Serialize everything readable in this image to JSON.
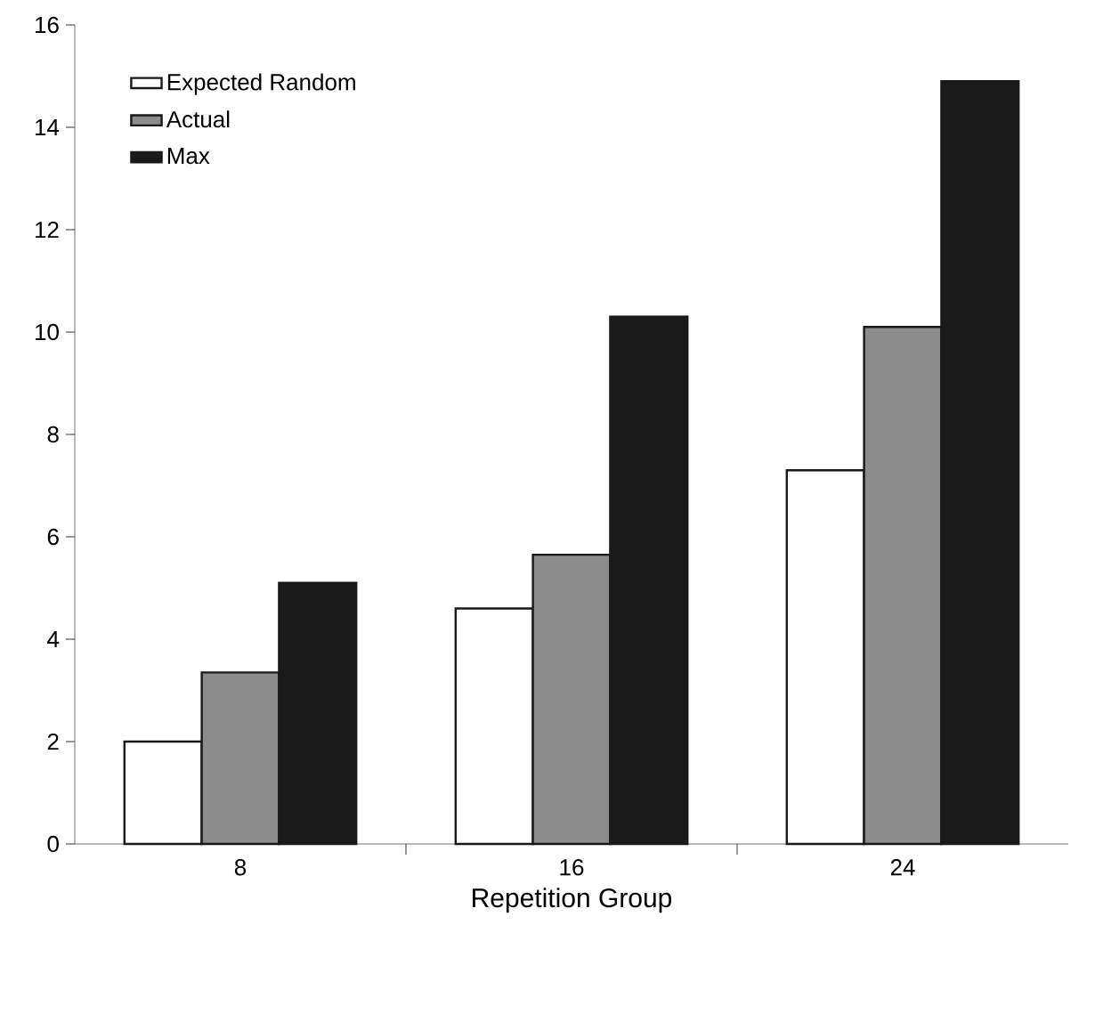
{
  "chart_data": {
    "type": "bar",
    "xlabel": "Repetition Group",
    "categories": [
      "8",
      "16",
      "24"
    ],
    "series": [
      {
        "name": "Expected Random",
        "color": "#ffffff",
        "values": [
          2.0,
          4.6,
          7.3
        ]
      },
      {
        "name": "Actual",
        "color": "#8c8c8c",
        "values": [
          3.35,
          5.65,
          10.1
        ]
      },
      {
        "name": "Max",
        "color": "#1a1a1a",
        "values": [
          5.1,
          10.3,
          14.9
        ]
      }
    ],
    "ylim": [
      0,
      16
    ],
    "yticks": [
      0,
      2,
      4,
      6,
      8,
      10,
      12,
      14,
      16
    ],
    "grid": false,
    "legend": "top left"
  }
}
